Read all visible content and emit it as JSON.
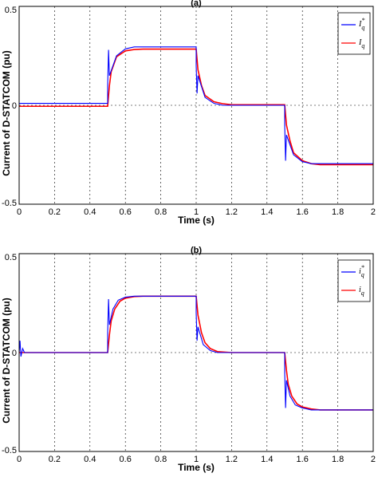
{
  "chart_data": [
    {
      "type": "line",
      "title": "(a)",
      "xlabel": "Time (s)",
      "ylabel": "Current of D-STATCOM (pu)",
      "xlim": [
        0,
        2
      ],
      "ylim": [
        -0.5,
        0.5
      ],
      "xticks": [
        "0",
        "0.2",
        "0.4",
        "0.6",
        "0.8",
        "1",
        "1.2",
        "1.4",
        "1.6",
        "1.8",
        "2"
      ],
      "yticks": [
        "-0.5",
        "0",
        "0.5"
      ],
      "grid": true,
      "legend": "top-right",
      "series": [
        {
          "name": "iq*",
          "legend_main": "I",
          "legend_sub": "q",
          "legend_sup": "*",
          "color": "#0000ff",
          "points": [
            [
              0,
              0.01
            ],
            [
              0.5,
              0.01
            ],
            [
              0.5,
              0.1
            ],
            [
              0.505,
              0.28
            ],
            [
              0.51,
              0.15
            ],
            [
              0.55,
              0.25
            ],
            [
              0.6,
              0.285
            ],
            [
              0.65,
              0.295
            ],
            [
              1.0,
              0.295
            ],
            [
              1.0,
              0.2
            ],
            [
              1.005,
              0.06
            ],
            [
              1.01,
              0.15
            ],
            [
              1.05,
              0.04
            ],
            [
              1.1,
              0.01
            ],
            [
              1.15,
              0.0
            ],
            [
              1.5,
              0.0
            ],
            [
              1.5,
              -0.1
            ],
            [
              1.505,
              -0.28
            ],
            [
              1.51,
              -0.15
            ],
            [
              1.55,
              -0.25
            ],
            [
              1.6,
              -0.285
            ],
            [
              1.65,
              -0.295
            ],
            [
              2.0,
              -0.295
            ]
          ]
        },
        {
          "name": "iq",
          "legend_main": "I",
          "legend_sub": "q",
          "legend_sup": "",
          "color": "#ff0000",
          "points": [
            [
              0,
              -0.005
            ],
            [
              0.5,
              -0.005
            ],
            [
              0.51,
              0.1
            ],
            [
              0.52,
              0.17
            ],
            [
              0.55,
              0.245
            ],
            [
              0.6,
              0.275
            ],
            [
              0.65,
              0.282
            ],
            [
              0.7,
              0.284
            ],
            [
              1.0,
              0.284
            ],
            [
              1.01,
              0.18
            ],
            [
              1.03,
              0.1
            ],
            [
              1.05,
              0.05
            ],
            [
              1.1,
              0.018
            ],
            [
              1.15,
              0.008
            ],
            [
              1.2,
              0.003
            ],
            [
              1.5,
              0.003
            ],
            [
              1.51,
              -0.1
            ],
            [
              1.53,
              -0.18
            ],
            [
              1.55,
              -0.24
            ],
            [
              1.6,
              -0.28
            ],
            [
              1.65,
              -0.295
            ],
            [
              1.7,
              -0.3
            ],
            [
              2.0,
              -0.3
            ]
          ]
        }
      ]
    },
    {
      "type": "line",
      "title": "(b)",
      "xlabel": "Time (s)",
      "ylabel": "Current of D-STATCOM (pu)",
      "xlim": [
        0,
        2
      ],
      "ylim": [
        -0.5,
        0.5
      ],
      "xticks": [
        "0",
        "0.2",
        "0.4",
        "0.6",
        "0.8",
        "1",
        "1.2",
        "1.4",
        "1.6",
        "1.8",
        "2"
      ],
      "yticks": [
        "-0.5",
        "0",
        "0.5"
      ],
      "grid": true,
      "legend": "top-right",
      "series": [
        {
          "name": "i*q",
          "legend_main": "i",
          "legend_sub": "q",
          "legend_sup": "*",
          "color": "#0000ff",
          "points": [
            [
              0,
              0.0
            ],
            [
              0.005,
              0.06
            ],
            [
              0.01,
              -0.02
            ],
            [
              0.02,
              0.02
            ],
            [
              0.03,
              0.0
            ],
            [
              0.5,
              0.0
            ],
            [
              0.5,
              0.1
            ],
            [
              0.505,
              0.27
            ],
            [
              0.51,
              0.14
            ],
            [
              0.53,
              0.22
            ],
            [
              0.56,
              0.265
            ],
            [
              0.6,
              0.28
            ],
            [
              0.65,
              0.285
            ],
            [
              1.0,
              0.285
            ],
            [
              1.0,
              0.2
            ],
            [
              1.005,
              0.06
            ],
            [
              1.01,
              0.13
            ],
            [
              1.04,
              0.04
            ],
            [
              1.08,
              0.01
            ],
            [
              1.12,
              0.0
            ],
            [
              1.5,
              0.0
            ],
            [
              1.5,
              -0.1
            ],
            [
              1.505,
              -0.28
            ],
            [
              1.51,
              -0.14
            ],
            [
              1.53,
              -0.22
            ],
            [
              1.56,
              -0.265
            ],
            [
              1.6,
              -0.28
            ],
            [
              1.65,
              -0.29
            ],
            [
              2.0,
              -0.29
            ]
          ]
        },
        {
          "name": "iq",
          "legend_main": "i",
          "legend_sub": "q",
          "legend_sup": "",
          "color": "#ff0000",
          "points": [
            [
              0,
              0.0
            ],
            [
              0.5,
              0.0
            ],
            [
              0.51,
              0.09
            ],
            [
              0.52,
              0.16
            ],
            [
              0.54,
              0.22
            ],
            [
              0.57,
              0.26
            ],
            [
              0.6,
              0.275
            ],
            [
              0.65,
              0.283
            ],
            [
              0.7,
              0.285
            ],
            [
              1.0,
              0.285
            ],
            [
              1.01,
              0.19
            ],
            [
              1.03,
              0.1
            ],
            [
              1.05,
              0.05
            ],
            [
              1.08,
              0.02
            ],
            [
              1.12,
              0.005
            ],
            [
              1.2,
              0.0
            ],
            [
              1.5,
              0.0
            ],
            [
              1.51,
              -0.09
            ],
            [
              1.52,
              -0.16
            ],
            [
              1.54,
              -0.22
            ],
            [
              1.57,
              -0.26
            ],
            [
              1.6,
              -0.275
            ],
            [
              1.65,
              -0.285
            ],
            [
              1.7,
              -0.29
            ],
            [
              2.0,
              -0.29
            ]
          ]
        }
      ]
    }
  ]
}
